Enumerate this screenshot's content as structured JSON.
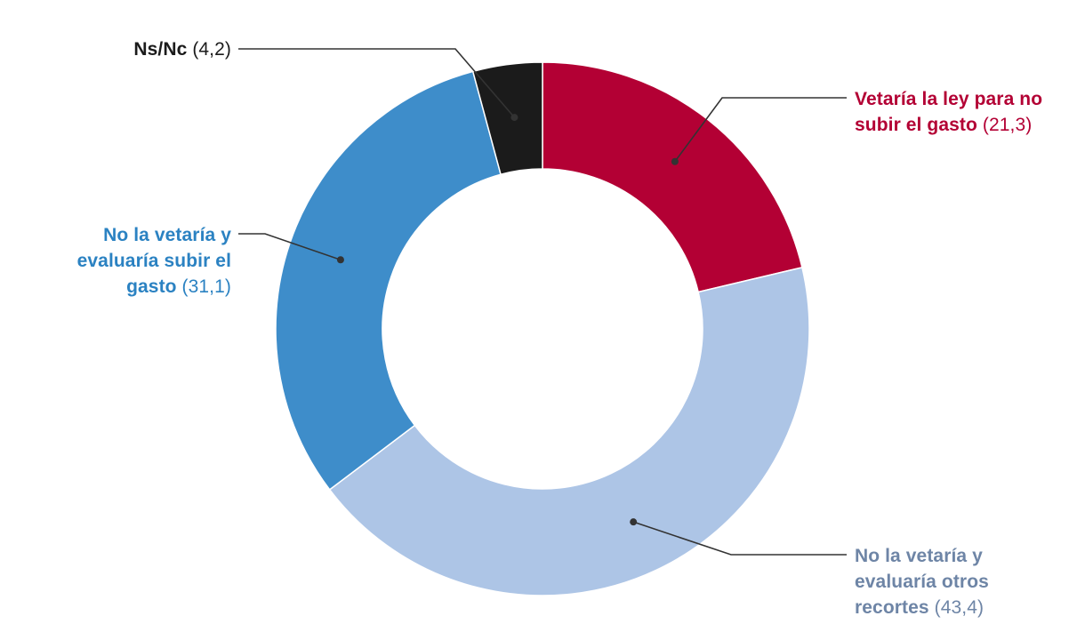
{
  "chart_data": {
    "type": "pie",
    "title": "",
    "slices": [
      {
        "category": "Vetaría la ley para no subir el gasto",
        "value": 21.3,
        "value_label": "(21,3)",
        "color": "#b30034"
      },
      {
        "category": "No la vetaría y evaluaría otros recortes",
        "value": 43.4,
        "value_label": "(43,4)",
        "color": "#adc5e6"
      },
      {
        "category": "No la vetaría y evaluaría subir el gasto",
        "value": 31.1,
        "value_label": "(31,1)",
        "color": "#3e8dca"
      },
      {
        "category": "Ns/Nc",
        "value": 4.2,
        "value_label": "(4,2)",
        "color": "#1b1b1b"
      }
    ],
    "label_colors": {
      "Vetaría la ley para no subir el gasto": "#b30034",
      "No la vetaría y evaluaría otros recortes": "#6e85a6",
      "No la vetaría y evaluaría subir el gasto": "#2b82c2",
      "Ns/Nc": "#1b1b1b"
    },
    "leader_color": "#333333"
  }
}
